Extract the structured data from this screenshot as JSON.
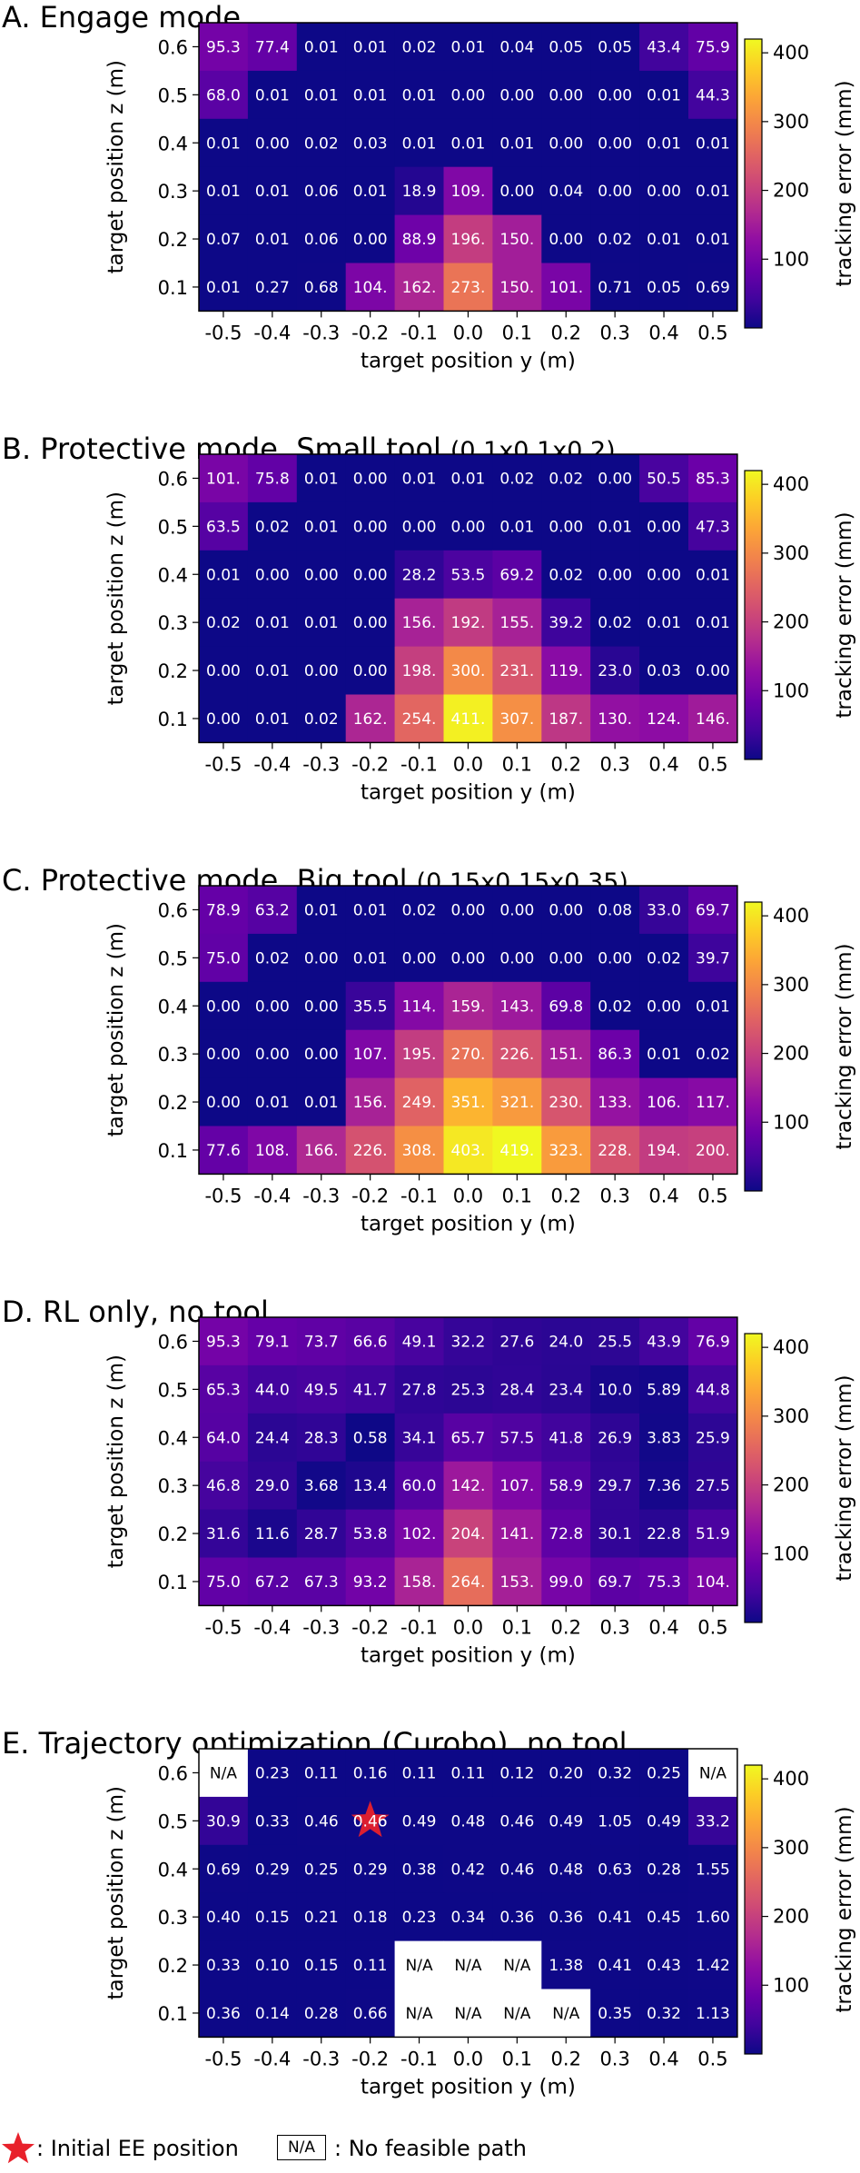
{
  "chart_data": [
    {
      "type": "heatmap",
      "panel_label": "A.",
      "title": "Engage mode",
      "title_suffix": "",
      "xlabel": "target position y (m)",
      "ylabel": "target position z (m)",
      "x": [
        "-0.5",
        "-0.4",
        "-0.3",
        "-0.2",
        "-0.1",
        "0.0",
        "0.1",
        "0.2",
        "0.3",
        "0.4",
        "0.5"
      ],
      "y": [
        "0.6",
        "0.5",
        "0.4",
        "0.3",
        "0.2",
        "0.1"
      ],
      "values": [
        [
          "95.3",
          "77.4",
          "0.01",
          "0.01",
          "0.02",
          "0.01",
          "0.04",
          "0.05",
          "0.05",
          "43.4",
          "75.9"
        ],
        [
          "68.0",
          "0.01",
          "0.01",
          "0.01",
          "0.01",
          "0.00",
          "0.00",
          "0.00",
          "0.00",
          "0.01",
          "44.3"
        ],
        [
          "0.01",
          "0.00",
          "0.02",
          "0.03",
          "0.01",
          "0.01",
          "0.01",
          "0.00",
          "0.00",
          "0.01",
          "0.01"
        ],
        [
          "0.01",
          "0.01",
          "0.06",
          "0.01",
          "18.9",
          "109.",
          "0.00",
          "0.04",
          "0.00",
          "0.00",
          "0.01"
        ],
        [
          "0.07",
          "0.01",
          "0.06",
          "0.00",
          "88.9",
          "196.",
          "150.",
          "0.00",
          "0.02",
          "0.01",
          "0.01"
        ],
        [
          "0.01",
          "0.27",
          "0.68",
          "104.",
          "162.",
          "273.",
          "150.",
          "101.",
          "0.71",
          "0.05",
          "0.69"
        ]
      ],
      "colorbar": {
        "label": "tracking error (mm)",
        "ticks": [
          100,
          200,
          300,
          400
        ],
        "range": [
          0,
          420
        ]
      }
    },
    {
      "type": "heatmap",
      "panel_label": "B.",
      "title": "Protective mode, Small tool",
      "title_suffix": "(0.1x0.1x0.2)",
      "xlabel": "target position y (m)",
      "ylabel": "target position z (m)",
      "x": [
        "-0.5",
        "-0.4",
        "-0.3",
        "-0.2",
        "-0.1",
        "0.0",
        "0.1",
        "0.2",
        "0.3",
        "0.4",
        "0.5"
      ],
      "y": [
        "0.6",
        "0.5",
        "0.4",
        "0.3",
        "0.2",
        "0.1"
      ],
      "values": [
        [
          "101.",
          "75.8",
          "0.01",
          "0.00",
          "0.01",
          "0.01",
          "0.02",
          "0.02",
          "0.00",
          "50.5",
          "85.3"
        ],
        [
          "63.5",
          "0.02",
          "0.01",
          "0.00",
          "0.00",
          "0.00",
          "0.01",
          "0.00",
          "0.01",
          "0.00",
          "47.3"
        ],
        [
          "0.01",
          "0.00",
          "0.00",
          "0.00",
          "28.2",
          "53.5",
          "69.2",
          "0.02",
          "0.00",
          "0.00",
          "0.01"
        ],
        [
          "0.02",
          "0.01",
          "0.01",
          "0.00",
          "156.",
          "192.",
          "155.",
          "39.2",
          "0.02",
          "0.01",
          "0.01"
        ],
        [
          "0.00",
          "0.01",
          "0.00",
          "0.00",
          "198.",
          "300.",
          "231.",
          "119.",
          "23.0",
          "0.03",
          "0.00"
        ],
        [
          "0.00",
          "0.01",
          "0.02",
          "162.",
          "254.",
          "411.",
          "307.",
          "187.",
          "130.",
          "124.",
          "146."
        ]
      ],
      "colorbar": {
        "label": "tracking error (mm)",
        "ticks": [
          100,
          200,
          300,
          400
        ],
        "range": [
          0,
          420
        ]
      }
    },
    {
      "type": "heatmap",
      "panel_label": "C.",
      "title": "Protective mode, Big tool",
      "title_suffix": "(0.15x0.15x0.35)",
      "xlabel": "target position y (m)",
      "ylabel": "target position z (m)",
      "x": [
        "-0.5",
        "-0.4",
        "-0.3",
        "-0.2",
        "-0.1",
        "0.0",
        "0.1",
        "0.2",
        "0.3",
        "0.4",
        "0.5"
      ],
      "y": [
        "0.6",
        "0.5",
        "0.4",
        "0.3",
        "0.2",
        "0.1"
      ],
      "values": [
        [
          "78.9",
          "63.2",
          "0.01",
          "0.01",
          "0.02",
          "0.00",
          "0.00",
          "0.00",
          "0.08",
          "33.0",
          "69.7"
        ],
        [
          "75.0",
          "0.02",
          "0.00",
          "0.01",
          "0.00",
          "0.00",
          "0.00",
          "0.00",
          "0.00",
          "0.02",
          "39.7"
        ],
        [
          "0.00",
          "0.00",
          "0.00",
          "35.5",
          "114.",
          "159.",
          "143.",
          "69.8",
          "0.02",
          "0.00",
          "0.01"
        ],
        [
          "0.00",
          "0.00",
          "0.00",
          "107.",
          "195.",
          "270.",
          "226.",
          "151.",
          "86.3",
          "0.01",
          "0.02"
        ],
        [
          "0.00",
          "0.01",
          "0.01",
          "156.",
          "249.",
          "351.",
          "321.",
          "230.",
          "133.",
          "106.",
          "117."
        ],
        [
          "77.6",
          "108.",
          "166.",
          "226.",
          "308.",
          "403.",
          "419.",
          "323.",
          "228.",
          "194.",
          "200."
        ]
      ],
      "colorbar": {
        "label": "tracking error (mm)",
        "ticks": [
          100,
          200,
          300,
          400
        ],
        "range": [
          0,
          420
        ]
      }
    },
    {
      "type": "heatmap",
      "panel_label": "D.",
      "title": "RL only, no tool",
      "title_suffix": "",
      "xlabel": "target position y (m)",
      "ylabel": "target position z (m)",
      "x": [
        "-0.5",
        "-0.4",
        "-0.3",
        "-0.2",
        "-0.1",
        "0.0",
        "0.1",
        "0.2",
        "0.3",
        "0.4",
        "0.5"
      ],
      "y": [
        "0.6",
        "0.5",
        "0.4",
        "0.3",
        "0.2",
        "0.1"
      ],
      "values": [
        [
          "95.3",
          "79.1",
          "73.7",
          "66.6",
          "49.1",
          "32.2",
          "27.6",
          "24.0",
          "25.5",
          "43.9",
          "76.9"
        ],
        [
          "65.3",
          "44.0",
          "49.5",
          "41.7",
          "27.8",
          "25.3",
          "28.4",
          "23.4",
          "10.0",
          "5.89",
          "44.8"
        ],
        [
          "64.0",
          "24.4",
          "28.3",
          "0.58",
          "34.1",
          "65.7",
          "57.5",
          "41.8",
          "26.9",
          "3.83",
          "25.9"
        ],
        [
          "46.8",
          "29.0",
          "3.68",
          "13.4",
          "60.0",
          "142.",
          "107.",
          "58.9",
          "29.7",
          "7.36",
          "27.5"
        ],
        [
          "31.6",
          "11.6",
          "28.7",
          "53.8",
          "102.",
          "204.",
          "141.",
          "72.8",
          "30.1",
          "22.8",
          "51.9"
        ],
        [
          "75.0",
          "67.2",
          "67.3",
          "93.2",
          "158.",
          "264.",
          "153.",
          "99.0",
          "69.7",
          "75.3",
          "104."
        ]
      ],
      "colorbar": {
        "label": "tracking error (mm)",
        "ticks": [
          100,
          200,
          300,
          400
        ],
        "range": [
          0,
          420
        ]
      }
    },
    {
      "type": "heatmap",
      "panel_label": "E.",
      "title": "Trajectory optimization (Curobo), no tool",
      "title_suffix": "",
      "xlabel": "target position y (m)",
      "ylabel": "target position z (m)",
      "x": [
        "-0.5",
        "-0.4",
        "-0.3",
        "-0.2",
        "-0.1",
        "0.0",
        "0.1",
        "0.2",
        "0.3",
        "0.4",
        "0.5"
      ],
      "y": [
        "0.6",
        "0.5",
        "0.4",
        "0.3",
        "0.2",
        "0.1"
      ],
      "values": [
        [
          "N/A",
          "0.23",
          "0.11",
          "0.16",
          "0.11",
          "0.11",
          "0.12",
          "0.20",
          "0.32",
          "0.25",
          "N/A"
        ],
        [
          "30.9",
          "0.33",
          "0.46",
          "0.46",
          "0.49",
          "0.48",
          "0.46",
          "0.49",
          "1.05",
          "0.49",
          "33.2"
        ],
        [
          "0.69",
          "0.29",
          "0.25",
          "0.29",
          "0.38",
          "0.42",
          "0.46",
          "0.48",
          "0.63",
          "0.28",
          "1.55"
        ],
        [
          "0.40",
          "0.15",
          "0.21",
          "0.18",
          "0.23",
          "0.34",
          "0.36",
          "0.36",
          "0.41",
          "0.45",
          "1.60"
        ],
        [
          "0.33",
          "0.10",
          "0.15",
          "0.11",
          "N/A",
          "N/A",
          "N/A",
          "1.38",
          "0.41",
          "0.43",
          "1.42"
        ],
        [
          "0.36",
          "0.14",
          "0.28",
          "0.66",
          "N/A",
          "N/A",
          "N/A",
          "N/A",
          "0.35",
          "0.32",
          "1.13"
        ]
      ],
      "initial_ee": {
        "y": "-0.2",
        "z": "0.5"
      },
      "colorbar": {
        "label": "tracking error (mm)",
        "ticks": [
          100,
          200,
          300,
          400
        ],
        "range": [
          0,
          420
        ]
      }
    }
  ],
  "legend": {
    "star_text": ": Initial EE position",
    "na_box": "N/A",
    "na_text": ": No feasible path"
  },
  "colors": {
    "colormap": "plasma",
    "na_fill": "#ffffff",
    "star": "#e8212b",
    "cell_text": "#ffffff"
  }
}
